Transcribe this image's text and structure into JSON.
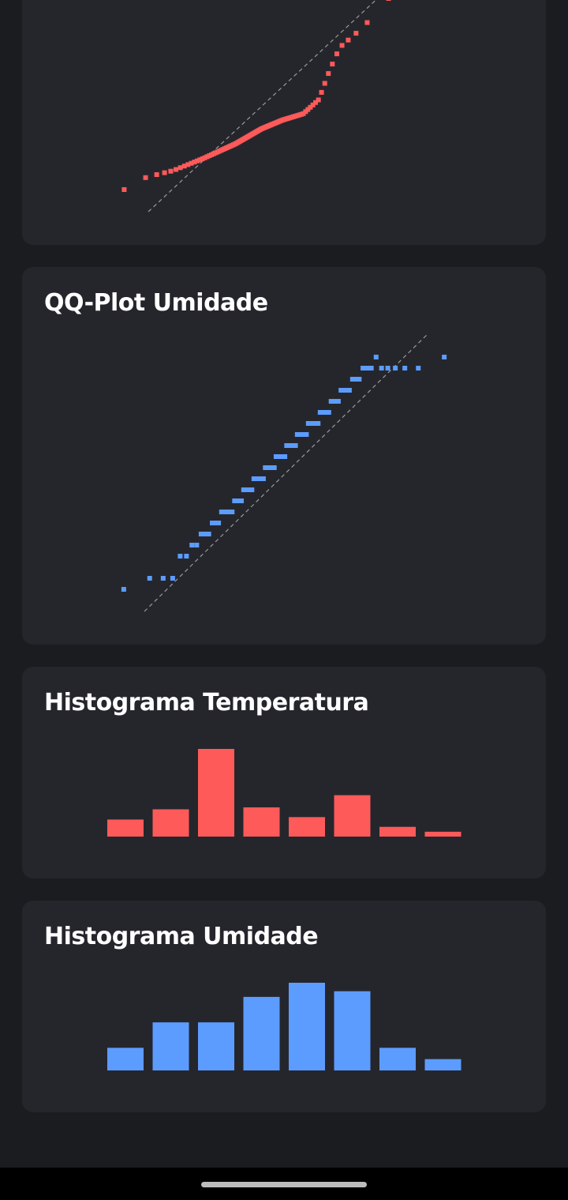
{
  "colors": {
    "background": "#1b1c20",
    "card": "#25262c",
    "temperature": "#ff5a5a",
    "humidity": "#5c9cff",
    "reference_line": "#9a9a9a"
  },
  "chart_data": [
    {
      "type": "scatter",
      "title": "",
      "series": [
        {
          "color": "#ff5a5a"
        }
      ],
      "reference_line": "dashed y = x",
      "note": "QQ-plot of temperature (top card, partially scrolled out of view)"
    },
    {
      "type": "scatter",
      "title": "QQ-Plot Umidade",
      "series": [
        {
          "color": "#5c9cff"
        }
      ],
      "reference_line": "dashed y = x"
    },
    {
      "type": "bar",
      "title": "Histograma Temperatura",
      "values": [
        3.5,
        5.6,
        18,
        6,
        4,
        8.5,
        2,
        1
      ],
      "color": "#ff5a5a"
    },
    {
      "type": "bar",
      "title": "Histograma Umidade",
      "values": [
        4,
        8.5,
        8.5,
        13,
        15.5,
        14,
        4,
        2
      ],
      "color": "#5c9cff"
    }
  ]
}
